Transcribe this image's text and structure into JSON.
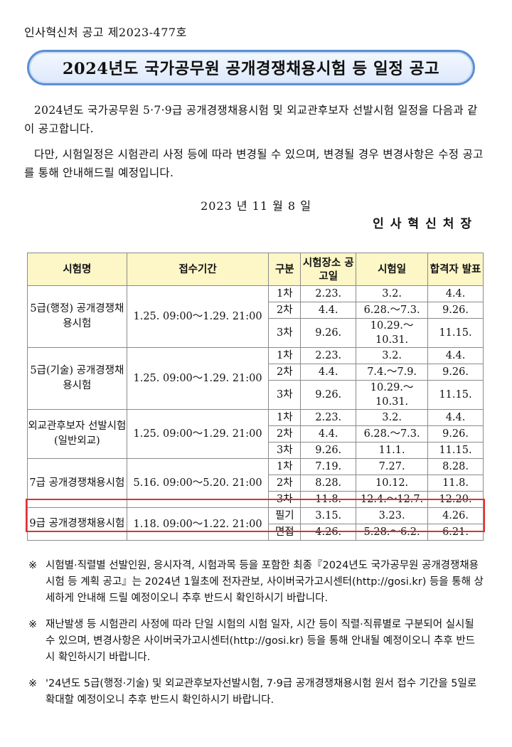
{
  "header": {
    "notice_number": "인사혁신처 공고 제2023-477호",
    "title": "2024년도 국가공무원 공개경쟁채용시험 등 일정 공고"
  },
  "body": {
    "paragraph1": "2024년도 국가공무원 5·7·9급 공개경쟁채용시험 및 외교관후보자 선발시험 일정을 다음과 같이 공고합니다.",
    "paragraph2": "다만, 시험일정은 시험관리 사정 등에 따라 변경될 수 있으며, 변경될 경우 변경사항은 수정 공고를 통해 안내해드릴 예정입니다.",
    "date": "2023 년 11 월 8 일",
    "signer": "인사혁신처장"
  },
  "table": {
    "headers": {
      "exam_name": "시험명",
      "application_period": "접수기간",
      "stage": "구분",
      "venue_notice": "시험장소 공고일",
      "exam_date": "시험일",
      "result": "합격자 발표"
    },
    "groups": [
      {
        "name": "5급(행정) 공개경쟁채용시험",
        "period": "1.25. 09:00～1.29. 21:00",
        "rows": [
          {
            "stage": "1차",
            "notice": "2.23.",
            "exam": "3.2.",
            "result": "4.4."
          },
          {
            "stage": "2차",
            "notice": "4.4.",
            "exam": "6.28.～7.3.",
            "result": "9.26."
          },
          {
            "stage": "3차",
            "notice": "9.26.",
            "exam": "10.29.～10.31.",
            "result": "11.15."
          }
        ]
      },
      {
        "name": "5급(기술) 공개경쟁채용시험",
        "period": "1.25. 09:00～1.29. 21:00",
        "rows": [
          {
            "stage": "1차",
            "notice": "2.23.",
            "exam": "3.2.",
            "result": "4.4."
          },
          {
            "stage": "2차",
            "notice": "4.4.",
            "exam": "7.4.～7.9.",
            "result": "9.26."
          },
          {
            "stage": "3차",
            "notice": "9.26.",
            "exam": "10.29.～10.31.",
            "result": "11.15."
          }
        ]
      },
      {
        "name": "외교관후보자 선발시험 (일반외교)",
        "period": "1.25. 09:00～1.29. 21:00",
        "rows": [
          {
            "stage": "1차",
            "notice": "2.23.",
            "exam": "3.2.",
            "result": "4.4."
          },
          {
            "stage": "2차",
            "notice": "4.4.",
            "exam": "6.28.～7.3.",
            "result": "9.26."
          },
          {
            "stage": "3차",
            "notice": "9.26.",
            "exam": "11.1.",
            "result": "11.15."
          }
        ]
      },
      {
        "name": "7급 공개경쟁채용시험",
        "period": "5.16. 09:00～5.20. 21:00",
        "rows": [
          {
            "stage": "1차",
            "notice": "7.19.",
            "exam": "7.27.",
            "result": "8.28."
          },
          {
            "stage": "2차",
            "notice": "8.28.",
            "exam": "10.12.",
            "result": "11.8."
          },
          {
            "stage": "3차",
            "notice": "11.8.",
            "exam": "12.4.～12.7.",
            "result": "12.20."
          }
        ]
      },
      {
        "name": "9급 공개경쟁채용시험",
        "period": "1.18. 09:00～1.22. 21:00",
        "rows": [
          {
            "stage": "필기",
            "notice": "3.15.",
            "exam": "3.23.",
            "result": "4.26."
          },
          {
            "stage": "면접",
            "notice": "4.26.",
            "exam": "5.28.～6.2.",
            "result": "6.21."
          }
        ]
      }
    ]
  },
  "notes": {
    "mark": "※",
    "items": [
      "시험별·직렬별 선발인원, 응시자격, 시험과목 등을 포함한 최종『2024년도 국가공무원 공개경쟁채용시험 등 계획 공고』는 2024년 1월초에 전자관보, 사이버국가고시센터(http://gosi.kr) 등을 통해 상세하게 안내해 드릴 예정이오니 추후 반드시 확인하시기 바랍니다.",
      "재난발생 등 시험관리 사정에 따라 단일 시험의 시험 일자, 시간 등이 직렬·직류별로 구분되어 실시될 수 있으며, 변경사항은 사이버국가고시센터(http://gosi.kr) 등을 통해 안내될 예정이오니 추후 반드시 확인하시기 바랍니다.",
      "'24년도 5급(행정·기술) 및 외교관후보자선발시험, 7·9급 공개경쟁채용시험 원서 접수 기간을 5일로 확대할 예정이오니 추후 반드시 확인하시기 바랍니다."
    ]
  },
  "colors": {
    "header_bg": "#fdf6c6",
    "highlight_border": "#e03030",
    "banner_border": "#5b8fd4"
  }
}
